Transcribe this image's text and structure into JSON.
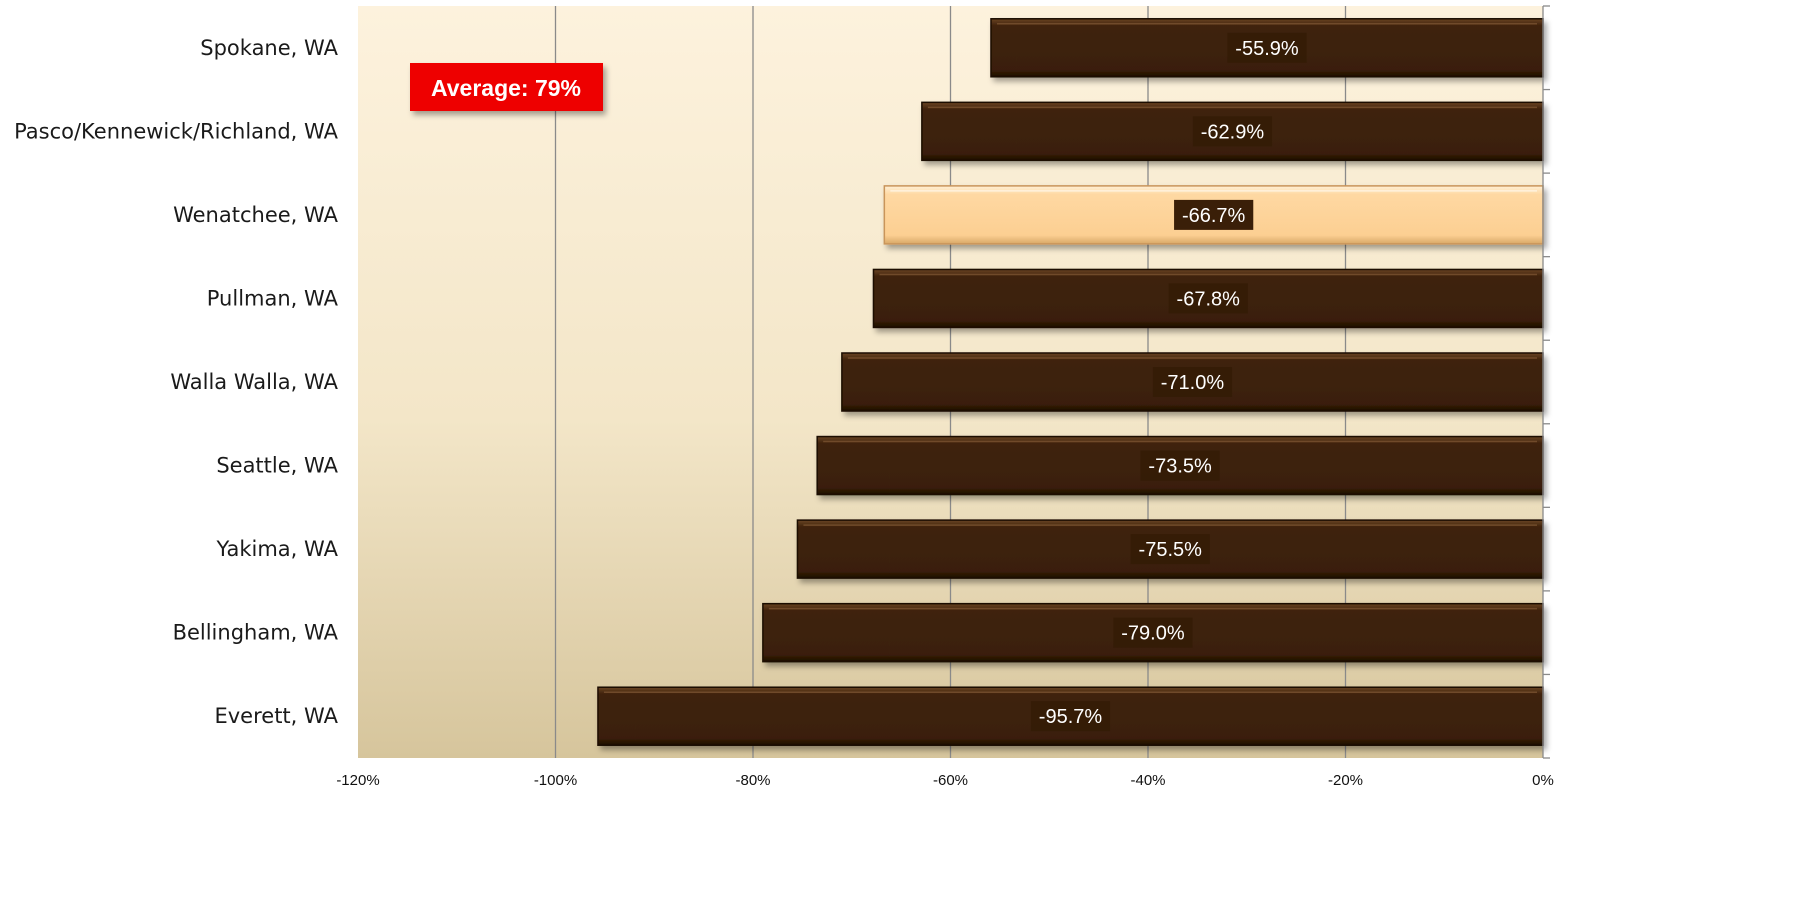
{
  "chart_data": {
    "type": "bar",
    "orientation": "horizontal",
    "categories": [
      "Spokane, WA",
      "Pasco/Kennewick/Richland, WA",
      "Wenatchee, WA",
      "Pullman, WA",
      "Walla Walla, WA",
      "Seattle, WA",
      "Yakima, WA",
      "Bellingham, WA",
      "Everett, WA"
    ],
    "values": [
      -55.9,
      -62.9,
      -66.7,
      -67.8,
      -71.0,
      -73.5,
      -75.5,
      -79.0,
      -95.7
    ],
    "data_labels": [
      "-55.9%",
      "-62.9%",
      "-66.7%",
      "-67.8%",
      "-71.0%",
      "-73.5%",
      "-75.5%",
      "-79.0%",
      "-95.7%"
    ],
    "highlight_category": "Wenatchee, WA",
    "xlim": [
      -120,
      0
    ],
    "x_ticks": [
      -120,
      -100,
      -80,
      -60,
      -40,
      -20,
      0
    ],
    "x_tick_labels": [
      "-120%",
      "-100%",
      "-80%",
      "-60%",
      "-40%",
      "-20%",
      "0%"
    ],
    "grid": true,
    "annotation": "Average: 79%",
    "colors": {
      "bar": "#3b2009",
      "bar_highlight": "#fdd39a",
      "annotation_bg": "#ee0000",
      "plot_bg_top": "#fdf1dc",
      "plot_bg_bottom": "#d9c8a0"
    }
  }
}
